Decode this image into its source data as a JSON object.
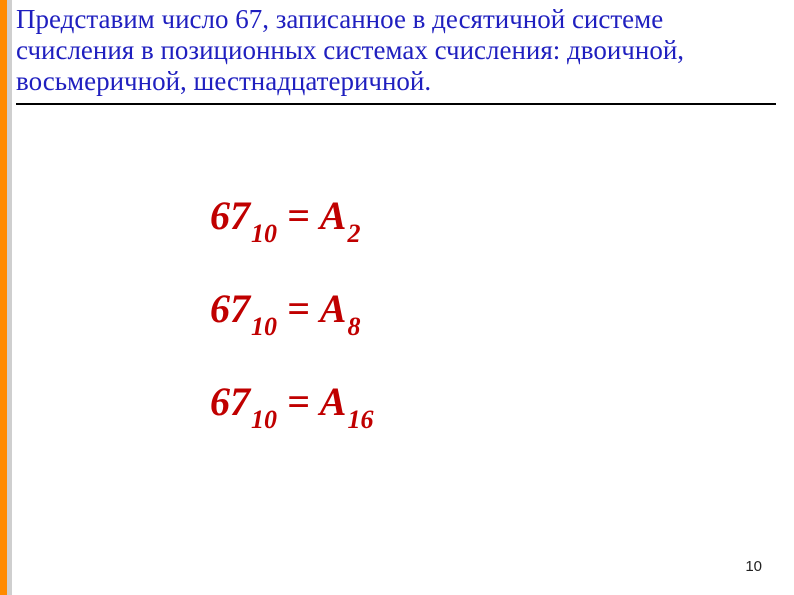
{
  "header": {
    "text": "Представим число 67, записанное в десятичной системе счисления в позиционных системах счисления: двоичной, восьмеричной, шестнадцатеричной.",
    "text_color": "#1f1fbf",
    "font_size_pt": 20,
    "hr_color": "#000000"
  },
  "equations": {
    "color": "#c00000",
    "font_size_pt": 30,
    "items": [
      {
        "left_base": "67",
        "left_sub": "10",
        "eq": "=",
        "right_base": "А",
        "right_sub": "2"
      },
      {
        "left_base": "67",
        "left_sub": "10",
        "eq": "=",
        "right_base": "А",
        "right_sub": "8"
      },
      {
        "left_base": "67",
        "left_sub": "10",
        "eq": "=",
        "right_base": "А",
        "right_sub": "16"
      }
    ]
  },
  "accent": {
    "color": "#ff8a00",
    "shadow": "#cfcfcf"
  },
  "page_number": "10"
}
